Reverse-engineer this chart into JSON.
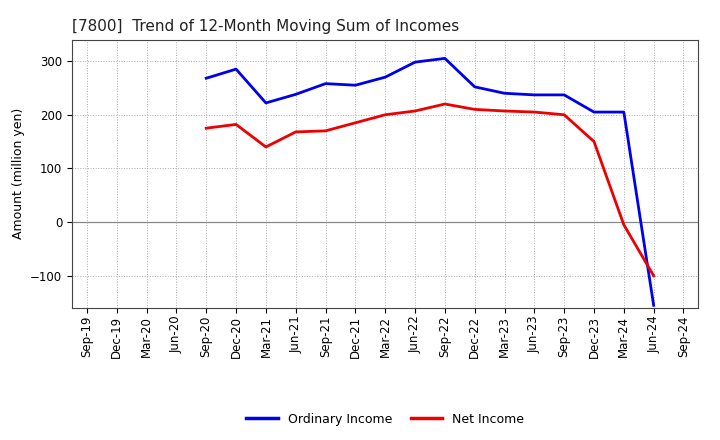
{
  "title": "[7800]  Trend of 12-Month Moving Sum of Incomes",
  "ylabel": "Amount (million yen)",
  "x_labels": [
    "Sep-19",
    "Dec-19",
    "Mar-20",
    "Jun-20",
    "Sep-20",
    "Dec-20",
    "Mar-21",
    "Jun-21",
    "Sep-21",
    "Dec-21",
    "Mar-22",
    "Jun-22",
    "Sep-22",
    "Dec-22",
    "Mar-23",
    "Jun-23",
    "Sep-23",
    "Dec-23",
    "Mar-24",
    "Jun-24",
    "Sep-24"
  ],
  "ordinary_income_x": [
    "Sep-20",
    "Dec-20",
    "Mar-21",
    "Jun-21",
    "Sep-21",
    "Dec-21",
    "Mar-22",
    "Jun-22",
    "Sep-22",
    "Dec-22",
    "Mar-23",
    "Jun-23",
    "Sep-23",
    "Dec-23",
    "Mar-24",
    "Jun-24"
  ],
  "ordinary_income_y": [
    268,
    285,
    222,
    238,
    258,
    255,
    270,
    298,
    305,
    252,
    240,
    237,
    237,
    205,
    205,
    -155
  ],
  "net_income_x": [
    "Sep-20",
    "Dec-20",
    "Mar-21",
    "Jun-21",
    "Sep-21",
    "Dec-21",
    "Mar-22",
    "Jun-22",
    "Sep-22",
    "Dec-22",
    "Mar-23",
    "Jun-23",
    "Sep-23",
    "Dec-23",
    "Mar-24",
    "Jun-24"
  ],
  "net_income_y": [
    175,
    182,
    140,
    168,
    170,
    185,
    200,
    207,
    220,
    210,
    207,
    205,
    200,
    150,
    -5,
    -100
  ],
  "ordinary_income_color": "#0000EE",
  "net_income_color": "#EE0000",
  "ylim": [
    -160,
    340
  ],
  "yticks": [
    -100,
    0,
    100,
    200,
    300
  ],
  "background_color": "#FFFFFF",
  "plot_bg_color": "#FFFFFF",
  "grid_color": "#AAAAAA",
  "linewidth": 2.0,
  "legend_labels": [
    "Ordinary Income",
    "Net Income"
  ],
  "title_fontsize": 11,
  "axis_label_fontsize": 9,
  "tick_fontsize": 8.5,
  "legend_fontsize": 9
}
